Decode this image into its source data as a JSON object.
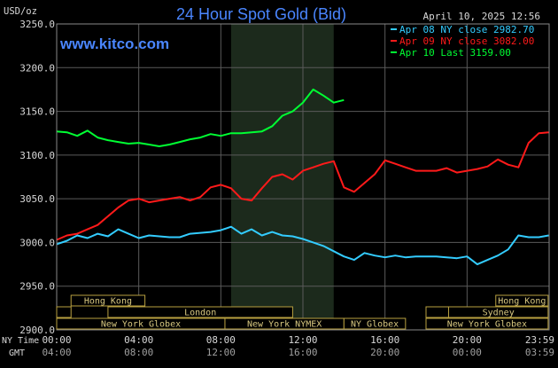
{
  "chart_data": {
    "type": "line",
    "title": "24 Hour Spot Gold (Bid)",
    "ylabel": "USD/oz",
    "site": "www.kitco.com",
    "timestamp": "April 10, 2025 12:56",
    "ylim": [
      2900,
      3250
    ],
    "y_ticks": [
      "3250.0",
      "3200.0",
      "3150.0",
      "3100.0",
      "3050.0",
      "3000.0",
      "2950.0",
      "2900.0"
    ],
    "x_row_ny_label": "NY Time",
    "x_row_gmt_label": "GMT",
    "x_ticks_ny": [
      "00:00",
      "04:00",
      "08:00",
      "12:00",
      "16:00",
      "20:00",
      "23:59"
    ],
    "x_ticks_gmt": [
      "04:00",
      "08:00",
      "12:00",
      "16:00",
      "20:00",
      "00:00",
      "03:59"
    ],
    "highlight_hours": [
      8.5,
      13.5
    ],
    "grid": true,
    "legend_position": "top-right",
    "series": [
      {
        "name": "Apr 08 NY close 2982.70",
        "color": "#33ccff",
        "points": [
          [
            0,
            2998
          ],
          [
            0.5,
            3002
          ],
          [
            1,
            3008
          ],
          [
            1.5,
            3005
          ],
          [
            2,
            3010
          ],
          [
            2.5,
            3007
          ],
          [
            3,
            3015
          ],
          [
            3.5,
            3010
          ],
          [
            4,
            3005
          ],
          [
            4.5,
            3008
          ],
          [
            5,
            3007
          ],
          [
            5.5,
            3006
          ],
          [
            6,
            3006
          ],
          [
            6.5,
            3010
          ],
          [
            7,
            3011
          ],
          [
            7.5,
            3012
          ],
          [
            8,
            3014
          ],
          [
            8.5,
            3018
          ],
          [
            9,
            3010
          ],
          [
            9.5,
            3015
          ],
          [
            10,
            3008
          ],
          [
            10.5,
            3012
          ],
          [
            11,
            3008
          ],
          [
            11.5,
            3007
          ],
          [
            12,
            3004
          ],
          [
            12.5,
            3000
          ],
          [
            13,
            2996
          ],
          [
            13.5,
            2990
          ],
          [
            14,
            2984
          ],
          [
            14.5,
            2980
          ],
          [
            15,
            2988
          ],
          [
            15.5,
            2985
          ],
          [
            16,
            2983
          ],
          [
            16.5,
            2985
          ],
          [
            17,
            2983
          ],
          [
            17.5,
            2984
          ],
          [
            18,
            2984
          ],
          [
            18.5,
            2984
          ],
          [
            19,
            2983
          ],
          [
            19.5,
            2982
          ],
          [
            20,
            2984
          ],
          [
            20.5,
            2975
          ],
          [
            21,
            2980
          ],
          [
            21.5,
            2985
          ],
          [
            22,
            2992
          ],
          [
            22.5,
            3008
          ],
          [
            23,
            3006
          ],
          [
            23.5,
            3006
          ],
          [
            23.98,
            3008
          ]
        ]
      },
      {
        "name": "Apr 09 NY close 3082.00",
        "color": "#ff1a1a",
        "points": [
          [
            0,
            3003
          ],
          [
            0.5,
            3008
          ],
          [
            1,
            3010
          ],
          [
            1.5,
            3015
          ],
          [
            2,
            3020
          ],
          [
            2.5,
            3030
          ],
          [
            3,
            3040
          ],
          [
            3.5,
            3048
          ],
          [
            4,
            3050
          ],
          [
            4.5,
            3046
          ],
          [
            5,
            3048
          ],
          [
            5.5,
            3050
          ],
          [
            6,
            3052
          ],
          [
            6.5,
            3048
          ],
          [
            7,
            3052
          ],
          [
            7.5,
            3063
          ],
          [
            8,
            3066
          ],
          [
            8.5,
            3062
          ],
          [
            9,
            3050
          ],
          [
            9.5,
            3048
          ],
          [
            10,
            3062
          ],
          [
            10.5,
            3075
          ],
          [
            11,
            3078
          ],
          [
            11.5,
            3072
          ],
          [
            12,
            3082
          ],
          [
            12.5,
            3086
          ],
          [
            13,
            3090
          ],
          [
            13.5,
            3093
          ],
          [
            14,
            3063
          ],
          [
            14.5,
            3058
          ],
          [
            15,
            3068
          ],
          [
            15.5,
            3078
          ],
          [
            16,
            3094
          ],
          [
            16.5,
            3090
          ],
          [
            17,
            3086
          ],
          [
            17.5,
            3082
          ],
          [
            18,
            3082
          ],
          [
            18.5,
            3082
          ],
          [
            19,
            3085
          ],
          [
            19.5,
            3080
          ],
          [
            20,
            3082
          ],
          [
            20.5,
            3084
          ],
          [
            21,
            3087
          ],
          [
            21.5,
            3095
          ],
          [
            22,
            3089
          ],
          [
            22.5,
            3086
          ],
          [
            23,
            3114
          ],
          [
            23.5,
            3125
          ],
          [
            23.98,
            3126
          ]
        ]
      },
      {
        "name": "Apr 10 Last 3159.00",
        "color": "#00ff33",
        "points": [
          [
            0,
            3127
          ],
          [
            0.5,
            3126
          ],
          [
            1,
            3122
          ],
          [
            1.5,
            3128
          ],
          [
            2,
            3120
          ],
          [
            2.5,
            3117
          ],
          [
            3,
            3115
          ],
          [
            3.5,
            3113
          ],
          [
            4,
            3114
          ],
          [
            4.5,
            3112
          ],
          [
            5,
            3110
          ],
          [
            5.5,
            3112
          ],
          [
            6,
            3115
          ],
          [
            6.5,
            3118
          ],
          [
            7,
            3120
          ],
          [
            7.5,
            3124
          ],
          [
            8,
            3122
          ],
          [
            8.5,
            3125
          ],
          [
            9,
            3125
          ],
          [
            9.5,
            3126
          ],
          [
            10,
            3127
          ],
          [
            10.5,
            3133
          ],
          [
            11,
            3145
          ],
          [
            11.5,
            3150
          ],
          [
            12,
            3160
          ],
          [
            12.5,
            3175
          ],
          [
            13,
            3168
          ],
          [
            13.5,
            3160
          ],
          [
            14,
            3163
          ]
        ]
      }
    ],
    "sessions": [
      {
        "name": "Hong Kong",
        "row": 0,
        "start": 0.7,
        "end": 4.3
      },
      {
        "name": "Hong Kong",
        "row": 0,
        "start": 21.4,
        "end": 23.95
      },
      {
        "name": "London",
        "row": 1,
        "start": 2.5,
        "end": 11.5
      },
      {
        "name": "Sydney",
        "row": 1,
        "start": 19.1,
        "end": 23.95
      },
      {
        "name": "New York Globex",
        "row": 2,
        "start": 0,
        "end": 8.2
      },
      {
        "name": "New York NYMEX",
        "row": 2,
        "start": 8.2,
        "end": 14.0
      },
      {
        "name": "NY Globex",
        "row": 2,
        "start": 14.0,
        "end": 17.0
      },
      {
        "name": "New York Globex",
        "row": 2,
        "start": 18.0,
        "end": 23.95
      }
    ],
    "session_side_ticks": [
      {
        "row": 1,
        "start": 0,
        "end": 0.7
      },
      {
        "row": 1,
        "start": 18.0,
        "end": 19.1
      }
    ]
  },
  "colors": {
    "background": "#000000",
    "plot_border": "#888888",
    "grid": "#5a5a5a",
    "highlight": "#1c2a1c",
    "title": "#4a86ff",
    "site": "#4a86ff",
    "text": "#d8d8d8",
    "session_fill": "#000000",
    "session_border": "#b8a040",
    "session_text": "#d8c880"
  }
}
